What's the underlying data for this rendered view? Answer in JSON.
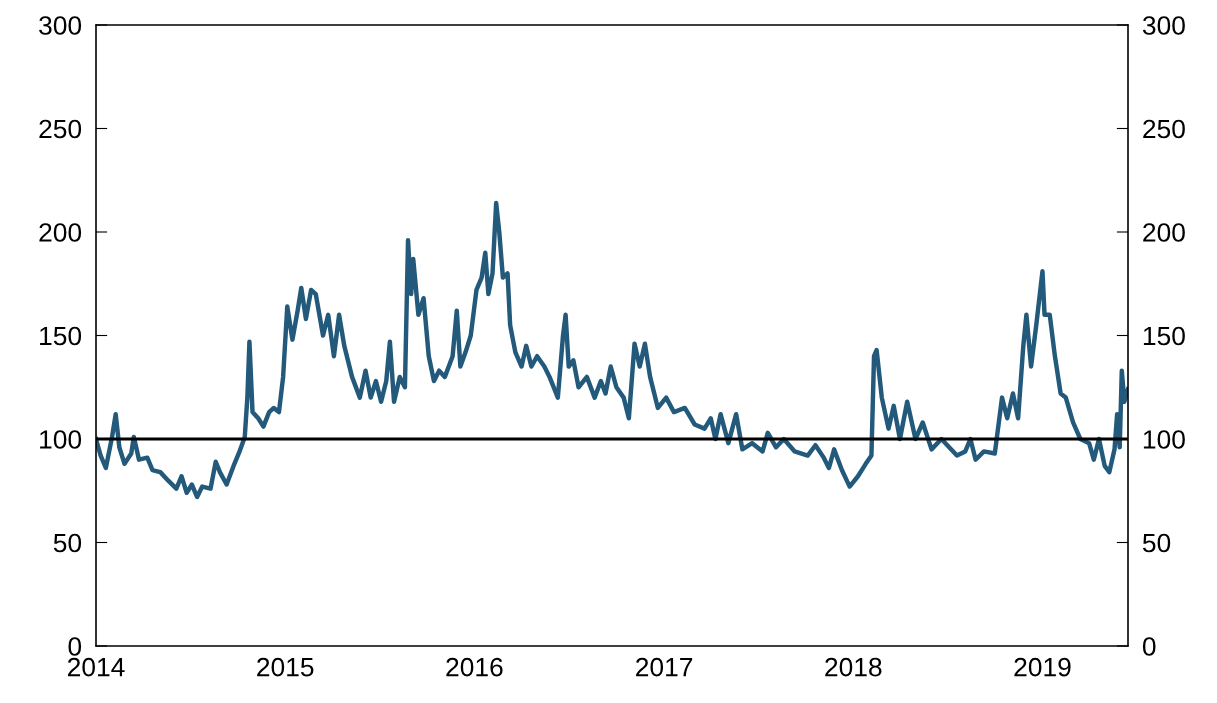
{
  "chart_data": {
    "type": "line",
    "xlim": [
      "2014-01-01",
      "2019-06-15"
    ],
    "xticks": [
      {
        "value": "2014-01-01",
        "label": "2014"
      },
      {
        "value": "2015-01-01",
        "label": "2015"
      },
      {
        "value": "2016-01-01",
        "label": "2016"
      },
      {
        "value": "2017-01-01",
        "label": "2017"
      },
      {
        "value": "2018-01-01",
        "label": "2018"
      },
      {
        "value": "2019-01-01",
        "label": "2019"
      }
    ],
    "ylim": [
      0,
      300
    ],
    "yticks": [
      0,
      50,
      100,
      150,
      200,
      250,
      300
    ],
    "y2lim": [
      0,
      300
    ],
    "y2ticks": [
      0,
      50,
      100,
      150,
      200,
      250,
      300
    ],
    "grid": false,
    "legend": false,
    "marker": "none",
    "line_style": "solid",
    "ref_lines": [
      {
        "axis": "y",
        "value": 100,
        "color": "#000000",
        "line_style": "solid"
      }
    ],
    "series": [
      {
        "color": "#235a7b",
        "x": [
          "2014-01-01",
          "2014-01-10",
          "2014-01-20",
          "2014-02-01",
          "2014-02-08",
          "2014-02-15",
          "2014-02-25",
          "2014-03-10",
          "2014-03-15",
          "2014-03-25",
          "2014-04-10",
          "2014-04-20",
          "2014-05-05",
          "2014-05-20",
          "2014-06-05",
          "2014-06-15",
          "2014-06-25",
          "2014-07-05",
          "2014-07-15",
          "2014-07-25",
          "2014-08-10",
          "2014-08-20",
          "2014-08-28",
          "2014-09-10",
          "2014-09-25",
          "2014-10-05",
          "2014-10-15",
          "2014-10-20",
          "2014-10-24",
          "2014-10-30",
          "2014-11-10",
          "2014-11-20",
          "2014-12-01",
          "2014-12-10",
          "2014-12-20",
          "2014-12-28",
          "2015-01-05",
          "2015-01-15",
          "2015-01-25",
          "2015-02-01",
          "2015-02-10",
          "2015-02-20",
          "2015-03-01",
          "2015-03-15",
          "2015-03-25",
          "2015-04-05",
          "2015-04-15",
          "2015-04-25",
          "2015-05-10",
          "2015-05-25",
          "2015-06-05",
          "2015-06-15",
          "2015-06-25",
          "2015-07-05",
          "2015-07-15",
          "2015-07-22",
          "2015-07-30",
          "2015-08-10",
          "2015-08-20",
          "2015-08-26",
          "2015-09-01",
          "2015-09-05",
          "2015-09-15",
          "2015-09-25",
          "2015-10-05",
          "2015-10-15",
          "2015-10-25",
          "2015-11-05",
          "2015-11-20",
          "2015-11-28",
          "2015-12-05",
          "2015-12-15",
          "2015-12-25",
          "2016-01-05",
          "2016-01-15",
          "2016-01-22",
          "2016-01-28",
          "2016-02-05",
          "2016-02-12",
          "2016-02-18",
          "2016-02-25",
          "2016-03-05",
          "2016-03-10",
          "2016-03-20",
          "2016-04-01",
          "2016-04-10",
          "2016-04-20",
          "2016-05-01",
          "2016-05-15",
          "2016-05-25",
          "2016-06-10",
          "2016-06-20",
          "2016-06-25",
          "2016-07-01",
          "2016-07-10",
          "2016-07-20",
          "2016-08-05",
          "2016-08-20",
          "2016-09-01",
          "2016-09-10",
          "2016-09-20",
          "2016-10-01",
          "2016-10-15",
          "2016-10-25",
          "2016-11-05",
          "2016-11-15",
          "2016-11-25",
          "2016-12-05",
          "2016-12-20",
          "2017-01-05",
          "2017-01-20",
          "2017-02-10",
          "2017-03-01",
          "2017-03-20",
          "2017-04-01",
          "2017-04-10",
          "2017-04-20",
          "2017-05-05",
          "2017-05-20",
          "2017-06-01",
          "2017-06-20",
          "2017-07-10",
          "2017-07-20",
          "2017-08-05",
          "2017-08-20",
          "2017-09-10",
          "2017-10-05",
          "2017-10-20",
          "2017-11-05",
          "2017-11-15",
          "2017-11-25",
          "2017-12-10",
          "2017-12-25",
          "2018-01-10",
          "2018-01-25",
          "2018-02-05",
          "2018-02-10",
          "2018-02-15",
          "2018-02-25",
          "2018-03-10",
          "2018-03-20",
          "2018-04-01",
          "2018-04-15",
          "2018-05-01",
          "2018-05-15",
          "2018-06-01",
          "2018-06-20",
          "2018-07-05",
          "2018-07-20",
          "2018-08-05",
          "2018-08-15",
          "2018-08-25",
          "2018-09-10",
          "2018-10-01",
          "2018-10-15",
          "2018-10-25",
          "2018-11-05",
          "2018-11-15",
          "2018-11-25",
          "2018-12-01",
          "2018-12-10",
          "2018-12-20",
          "2019-01-01",
          "2019-01-05",
          "2019-01-15",
          "2019-01-25",
          "2019-02-05",
          "2019-02-15",
          "2019-03-01",
          "2019-03-15",
          "2019-04-01",
          "2019-04-10",
          "2019-04-20",
          "2019-05-01",
          "2019-05-10",
          "2019-05-20",
          "2019-05-25",
          "2019-05-30",
          "2019-06-03",
          "2019-06-08",
          "2019-06-15"
        ],
        "values": [
          100,
          92,
          86,
          101,
          112,
          96,
          88,
          93,
          101,
          90,
          91,
          85,
          84,
          80,
          76,
          82,
          74,
          78,
          72,
          77,
          76,
          89,
          84,
          78,
          88,
          94,
          101,
          120,
          147,
          113,
          110,
          106,
          113,
          115,
          113,
          130,
          164,
          148,
          162,
          173,
          158,
          172,
          170,
          150,
          160,
          140,
          160,
          145,
          130,
          120,
          133,
          120,
          128,
          118,
          128,
          147,
          118,
          130,
          125,
          196,
          170,
          187,
          160,
          168,
          140,
          128,
          133,
          130,
          140,
          162,
          135,
          142,
          150,
          172,
          178,
          190,
          170,
          180,
          214,
          200,
          178,
          180,
          155,
          142,
          135,
          145,
          135,
          140,
          135,
          130,
          120,
          150,
          160,
          135,
          138,
          125,
          130,
          120,
          128,
          122,
          135,
          125,
          120,
          110,
          146,
          135,
          146,
          130,
          115,
          120,
          113,
          115,
          107,
          105,
          110,
          100,
          112,
          98,
          112,
          95,
          98,
          94,
          103,
          96,
          100,
          94,
          92,
          97,
          91,
          86,
          95,
          85,
          77,
          82,
          88,
          92,
          140,
          143,
          120,
          105,
          116,
          100,
          118,
          100,
          108,
          95,
          100,
          96,
          92,
          94,
          100,
          90,
          94,
          93,
          120,
          110,
          122,
          110,
          145,
          160,
          135,
          155,
          181,
          160,
          160,
          140,
          122,
          120,
          108,
          100,
          98,
          90,
          100,
          87,
          84,
          95,
          112,
          96,
          133,
          118,
          124
        ]
      }
    ]
  }
}
